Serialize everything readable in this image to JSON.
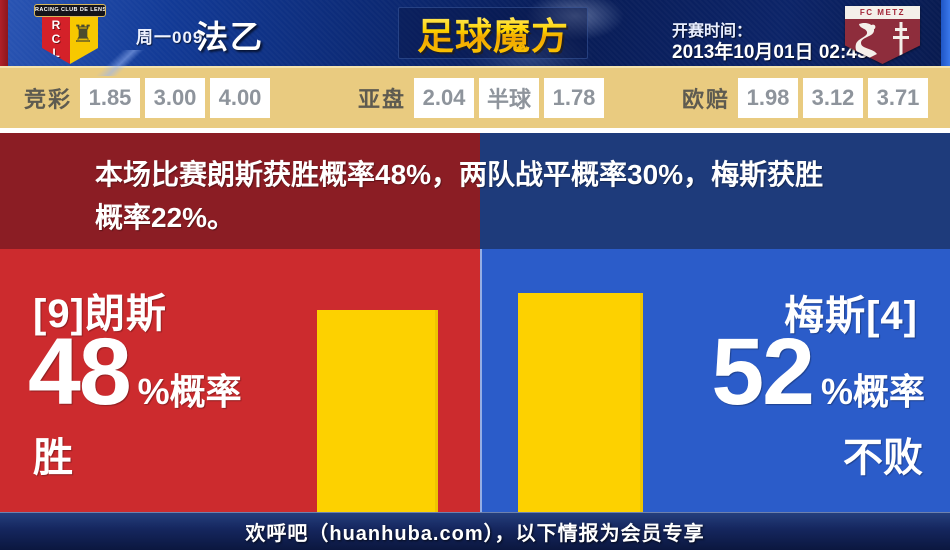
{
  "header": {
    "home_badge": {
      "banner": "RACING CLUB DE LENS",
      "letters": "RCL"
    },
    "match_label": "周一009",
    "league": "法乙",
    "site_logo": "足球魔方",
    "kickoff_label": "开赛时间：",
    "kickoff_time": "2013年10月01日 02:45",
    "away_badge": {
      "title": "FC METZ"
    }
  },
  "odds": {
    "groups": [
      {
        "label": "竞彩",
        "values": [
          "1.85",
          "3.00",
          "4.00"
        ]
      },
      {
        "label": "亚盘",
        "values": [
          "2.04",
          "半球",
          "1.78"
        ]
      },
      {
        "label": "欧赔",
        "values": [
          "1.98",
          "3.12",
          "3.71"
        ]
      }
    ]
  },
  "summary": {
    "text": "本场比赛朗斯获胜概率48%，两队战平概率30%，梅斯获胜概率22%。"
  },
  "home": {
    "name": "[9]朗斯",
    "percent": "48",
    "suffix": "%概率",
    "outcome": "胜"
  },
  "away": {
    "name": "梅斯[4]",
    "percent": "52",
    "suffix": "%概率",
    "outcome": "不败"
  },
  "footer": {
    "text": "欢呼吧（huanhuba.com），以下情报为会员专享"
  },
  "chart_data": {
    "type": "bar",
    "categories": [
      "[9]朗斯 胜",
      "梅斯[4] 不败"
    ],
    "values": [
      48,
      52
    ],
    "unit": "%",
    "bar_color": "#fdd100",
    "ylim": [
      0,
      62
    ],
    "legend_position": "none",
    "grid": false
  },
  "colors": {
    "bright_red": "#cc2b2e",
    "bright_blue": "#2b5cc9",
    "dark_red": "#8b1d24",
    "dark_blue": "#1e3b7b",
    "odds_bg": "#e9cb80",
    "bar_yellow": "#fdd100",
    "footer_navy": "#15265e",
    "logo_gold": "#ffc800"
  }
}
